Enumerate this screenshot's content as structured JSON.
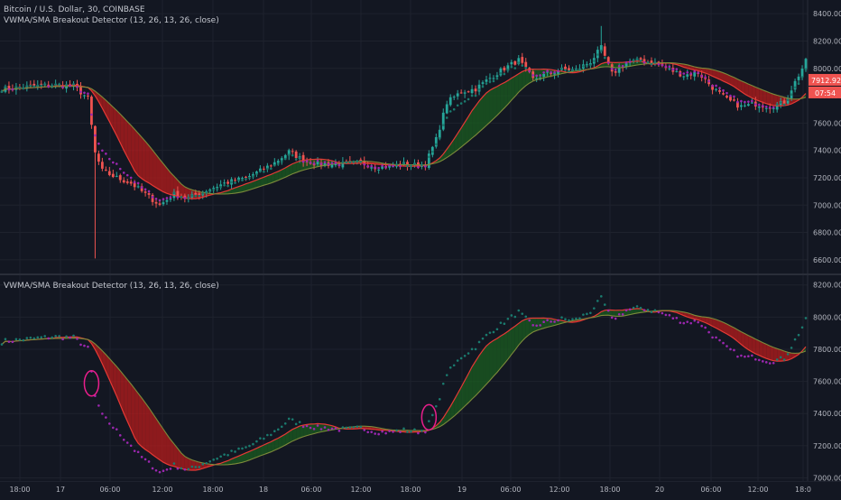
{
  "header": {
    "symbol_title": "Bitcoin / U.S. Dollar, 30, COINBASE",
    "indicator_title": "VWMA/SMA Breakout Detector (13, 26, 13, 26, close)"
  },
  "lower_pane": {
    "indicator_title": "VWMA/SMA Breakout Detector (13, 26, 13, 26, close)"
  },
  "price_axis_top": [
    "8400.00",
    "8200.00",
    "8000.00",
    "7800.00",
    "7600.00",
    "7400.00",
    "7200.00",
    "7000.00",
    "6800.00",
    "6600.00"
  ],
  "price_axis_bottom": [
    "8200.00",
    "8000.00",
    "7800.00",
    "7600.00",
    "7400.00",
    "7200.00",
    "7000.00"
  ],
  "last_price_label": "7912.92",
  "countdown_label": "07:54",
  "time_axis": [
    "18:00",
    "17",
    "06:00",
    "12:00",
    "18:00",
    "18",
    "06:00",
    "12:00",
    "18:00",
    "19",
    "06:00",
    "12:00",
    "18:00",
    "20",
    "06:00",
    "12:00",
    "18:0"
  ],
  "colors": {
    "bull": "#26a69a",
    "bear": "#ef5350",
    "vwma_line": "#e53935",
    "sma_line": "#2e7d32",
    "bear_fill": "#b71c1c",
    "bull_fill": "#1b5e20",
    "dots_up": "#1a7a6e",
    "dots_down": "#9c27b0",
    "highlight_circle": "#e91e8c"
  },
  "chart_data": {
    "type": "candlestick",
    "interval": "30",
    "symbol": "Bitcoin / U.S. Dollar",
    "exchange": "COINBASE",
    "ylim_top": [
      6500,
      8500
    ],
    "ylim_bottom": [
      6980,
      8260
    ],
    "last_price": 7912.92,
    "keypoints_close": [
      [
        0,
        7850
      ],
      [
        14,
        7880
      ],
      [
        20,
        7870
      ],
      [
        24,
        7780
      ],
      [
        26,
        7380
      ],
      [
        28,
        7250
      ],
      [
        32,
        7200
      ],
      [
        36,
        7160
      ],
      [
        40,
        7080
      ],
      [
        44,
        7000
      ],
      [
        48,
        7080
      ],
      [
        52,
        7050
      ],
      [
        56,
        7100
      ],
      [
        62,
        7160
      ],
      [
        68,
        7200
      ],
      [
        72,
        7250
      ],
      [
        76,
        7310
      ],
      [
        80,
        7390
      ],
      [
        84,
        7330
      ],
      [
        88,
        7300
      ],
      [
        92,
        7300
      ],
      [
        96,
        7300
      ],
      [
        100,
        7310
      ],
      [
        104,
        7280
      ],
      [
        108,
        7280
      ],
      [
        112,
        7300
      ],
      [
        116,
        7290
      ],
      [
        118,
        7300
      ],
      [
        121,
        7480
      ],
      [
        124,
        7750
      ],
      [
        128,
        7830
      ],
      [
        132,
        7850
      ],
      [
        136,
        7930
      ],
      [
        140,
        8000
      ],
      [
        144,
        8060
      ],
      [
        148,
        7920
      ],
      [
        152,
        7960
      ],
      [
        156,
        7990
      ],
      [
        160,
        7990
      ],
      [
        164,
        8050
      ],
      [
        167,
        8150
      ],
      [
        170,
        7960
      ],
      [
        174,
        8040
      ],
      [
        178,
        8060
      ],
      [
        182,
        8040
      ],
      [
        186,
        7990
      ],
      [
        190,
        7950
      ],
      [
        194,
        7970
      ],
      [
        198,
        7860
      ],
      [
        202,
        7770
      ],
      [
        206,
        7720
      ],
      [
        210,
        7740
      ],
      [
        214,
        7720
      ],
      [
        218,
        7750
      ],
      [
        221,
        7900
      ],
      [
        224,
        8050
      ]
    ],
    "spike_low": {
      "bar": 26,
      "price": 6610
    },
    "spike_high": {
      "bar": 167,
      "price": 8310
    },
    "breakout_events": [
      {
        "direction": "down",
        "bar": 25
      },
      {
        "direction": "up",
        "bar": 119
      }
    ]
  }
}
